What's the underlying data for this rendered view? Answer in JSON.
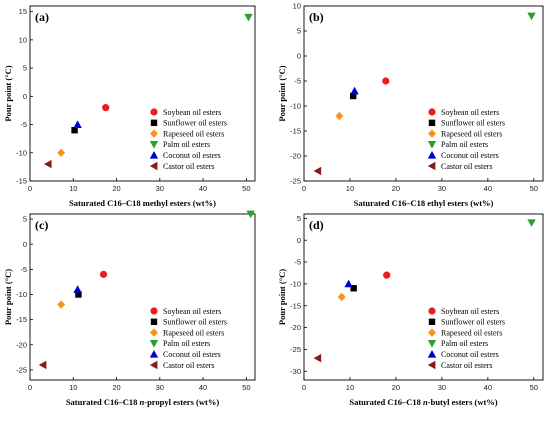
{
  "chart_data": [
    {
      "type": "scatter",
      "panel_label": "(a)",
      "xlabel": "Saturated C16–C18 methyl esters (wt%)",
      "ylabel": "Pour point (°C)",
      "xlim": [
        0,
        52
      ],
      "ylim": [
        -15,
        16
      ],
      "xticks": [
        0,
        10,
        20,
        30,
        40,
        50
      ],
      "yticks": [
        -15,
        -10,
        -5,
        0,
        5,
        10,
        15
      ],
      "legend_position": "right",
      "series": [
        {
          "name": "Soybean oil esters",
          "marker": "circle",
          "color": "#ee1c1c",
          "x": 17.5,
          "y": -2
        },
        {
          "name": "Sunflower oil esters",
          "marker": "square",
          "color": "#000000",
          "x": 10.3,
          "y": -6
        },
        {
          "name": "Rapeseed oil esters",
          "marker": "diamond",
          "color": "#f7941d",
          "x": 7.2,
          "y": -10
        },
        {
          "name": "Palm oil esters",
          "marker": "triangle-down",
          "color": "#2ca02c",
          "x": 50.5,
          "y": 14
        },
        {
          "name": "Coconut oil esters",
          "marker": "triangle-up",
          "color": "#0000cc",
          "x": 11.0,
          "y": -5
        },
        {
          "name": "Castor oil esters",
          "marker": "triangle-left",
          "color": "#8b1a1a",
          "x": 4.2,
          "y": -12
        }
      ]
    },
    {
      "type": "scatter",
      "panel_label": "(b)",
      "xlabel": "Saturated C16–C18 ethyl esters (wt%)",
      "ylabel": "Pour point (°C)",
      "xlim": [
        0,
        52
      ],
      "ylim": [
        -25,
        10
      ],
      "xticks": [
        0,
        10,
        20,
        30,
        40,
        50
      ],
      "yticks": [
        -25,
        -20,
        -15,
        -10,
        -5,
        0,
        5,
        10
      ],
      "legend_position": "right",
      "series": [
        {
          "name": "Soybean oil esters",
          "marker": "circle",
          "color": "#ee1c1c",
          "x": 17.8,
          "y": -5
        },
        {
          "name": "Sunflower oil esters",
          "marker": "square",
          "color": "#000000",
          "x": 10.7,
          "y": -8
        },
        {
          "name": "Rapeseed oil esters",
          "marker": "diamond",
          "color": "#f7941d",
          "x": 7.7,
          "y": -12
        },
        {
          "name": "Palm oil esters",
          "marker": "triangle-down",
          "color": "#2ca02c",
          "x": 49.5,
          "y": 8
        },
        {
          "name": "Coconut oil esters",
          "marker": "triangle-up",
          "color": "#0000cc",
          "x": 11.0,
          "y": -7
        },
        {
          "name": "Castor oil esters",
          "marker": "triangle-left",
          "color": "#8b1a1a",
          "x": 3.0,
          "y": -23
        }
      ]
    },
    {
      "type": "scatter",
      "panel_label": "(c)",
      "xlabel_parts": [
        "Saturated C16–C18 ",
        "n",
        "-propyl esters (wt%)"
      ],
      "ylabel": "Pour point (°C)",
      "xlim": [
        0,
        52
      ],
      "ylim": [
        -27,
        6
      ],
      "xticks": [
        0,
        10,
        20,
        30,
        40,
        50
      ],
      "yticks": [
        -25,
        -20,
        -15,
        -10,
        -5,
        0,
        5
      ],
      "legend_position": "right",
      "series": [
        {
          "name": "Soybean oil esters",
          "marker": "circle",
          "color": "#ee1c1c",
          "x": 17.0,
          "y": -6
        },
        {
          "name": "Sunflower oil esters",
          "marker": "square",
          "color": "#000000",
          "x": 11.2,
          "y": -10
        },
        {
          "name": "Rapeseed oil esters",
          "marker": "diamond",
          "color": "#f7941d",
          "x": 7.2,
          "y": -12
        },
        {
          "name": "Palm oil esters",
          "marker": "triangle-down",
          "color": "#2ca02c",
          "x": 51.0,
          "y": 6
        },
        {
          "name": "Coconut oil esters",
          "marker": "triangle-up",
          "color": "#0000cc",
          "x": 11.0,
          "y": -9
        },
        {
          "name": "Castor oil esters",
          "marker": "triangle-left",
          "color": "#8b1a1a",
          "x": 3.0,
          "y": -24
        }
      ]
    },
    {
      "type": "scatter",
      "panel_label": "(d)",
      "xlabel_parts": [
        "Saturated C16–C18 ",
        "n",
        "-butyl esters (wt%)"
      ],
      "ylabel": "Pour point (°C)",
      "xlim": [
        0,
        52
      ],
      "ylim": [
        -32,
        6
      ],
      "xticks": [
        0,
        10,
        20,
        30,
        40,
        50
      ],
      "yticks": [
        -30,
        -25,
        -20,
        -15,
        -10,
        -5,
        0,
        5
      ],
      "legend_position": "right",
      "series": [
        {
          "name": "Soybean oil esters",
          "marker": "circle",
          "color": "#ee1c1c",
          "x": 18.0,
          "y": -8
        },
        {
          "name": "Sunflower oil esters",
          "marker": "square",
          "color": "#000000",
          "x": 10.8,
          "y": -11
        },
        {
          "name": "Rapeseed oil esters",
          "marker": "diamond",
          "color": "#f7941d",
          "x": 8.2,
          "y": -13
        },
        {
          "name": "Palm oil esters",
          "marker": "triangle-down",
          "color": "#2ca02c",
          "x": 49.5,
          "y": 4
        },
        {
          "name": "Coconut oil esters",
          "marker": "triangle-up",
          "color": "#0000cc",
          "x": 9.7,
          "y": -10
        },
        {
          "name": "Castor oil esters",
          "marker": "triangle-left",
          "color": "#8b1a1a",
          "x": 3.0,
          "y": -27
        }
      ]
    }
  ]
}
